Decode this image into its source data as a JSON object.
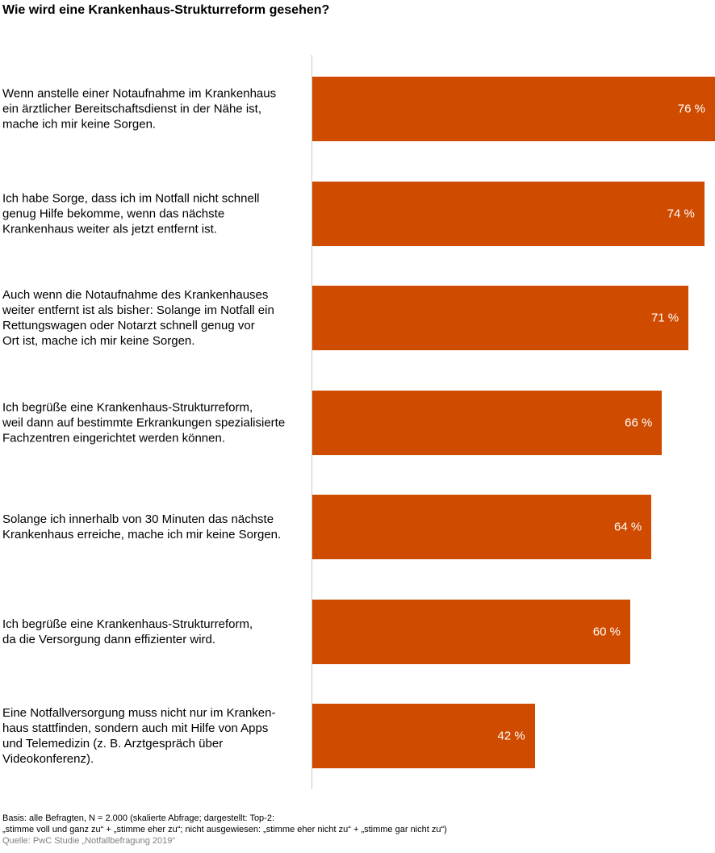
{
  "chart_data": {
    "type": "bar",
    "orientation": "horizontal",
    "title": "Wie wird eine Krankenhaus-Strukturreform gesehen?",
    "categories": [
      "Wenn anstelle einer Notaufnahme im Krankenhaus\nein ärztlicher Bereitschaftsdienst in der Nähe ist,\nmache ich mir keine Sorgen.",
      "Ich habe Sorge, dass ich im Notfall nicht schnell\ngenug Hilfe bekomme, wenn das nächste\nKrankenhaus weiter als jetzt entfernt ist.",
      "Auch wenn die Notaufnahme des Krankenhauses\nweiter entfernt ist als bisher: Solange im Notfall ein\nRettungswagen oder Notarzt schnell genug vor\nOrt ist, mache ich mir keine Sorgen.",
      "Ich begrüße eine Krankenhaus-Strukturreform,\nweil dann auf bestimmte Erkrankungen spezialisierte\nFachzentren eingerichtet werden können.",
      "Solange ich innerhalb von 30 Minuten das nächste\nKrankenhaus erreiche, mache ich mir keine Sorgen.",
      "Ich begrüße eine Krankenhaus-Strukturreform,\nda die Versorgung dann effizienter wird.",
      "Eine Notfallversorgung muss nicht nur im Kranken-\nhaus stattfinden, sondern auch mit Hilfe von Apps\nund Telemedizin (z. B. Arztgespräch über\nVideokonferenz)."
    ],
    "values": [
      76,
      74,
      71,
      66,
      64,
      60,
      42
    ],
    "value_labels": [
      "76 %",
      "74 %",
      "71 %",
      "66 %",
      "64 %",
      "60 %",
      "42 %"
    ],
    "xlim": [
      0,
      76
    ],
    "color": "#cf4b00",
    "grid": false,
    "legend": "none"
  },
  "footnote": {
    "basis_line1": "Basis: alle Befragten, N = 2.000 (skalierte Abfrage; dargestellt: Top-2:",
    "basis_line2": "„stimme voll und ganz zu“ + „stimme eher zu“; nicht ausgewiesen: „stimme eher nicht zu“ + „stimme gar nicht zu“)",
    "source": "Quelle: PwC Studie „Notfallbefragung 2019“"
  }
}
